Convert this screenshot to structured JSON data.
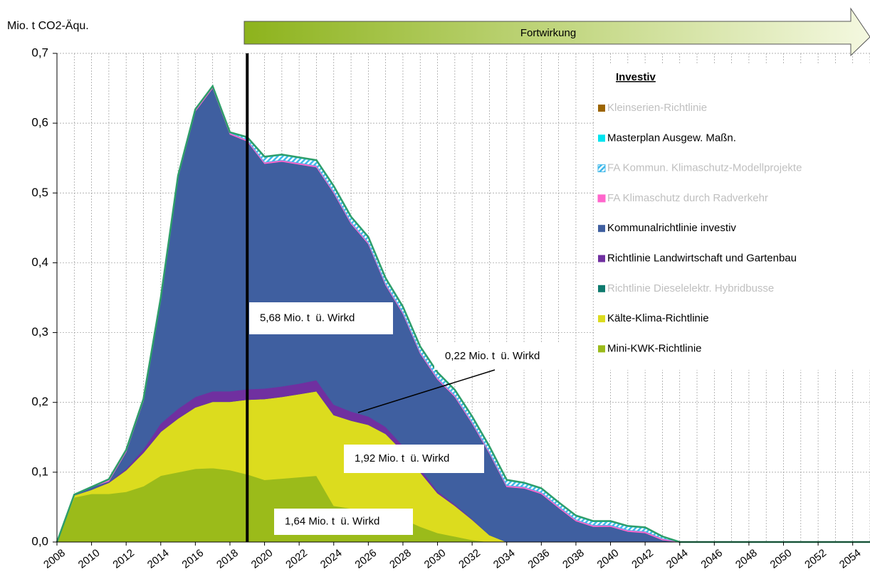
{
  "chart_data": {
    "type": "stacked_area",
    "y_axis_label": "Mio. t CO2-Äqu.",
    "banner": "Fortwirkung",
    "legend_title": "Investiv",
    "marker_x": 2019,
    "x": [
      2008,
      2009,
      2010,
      2011,
      2012,
      2013,
      2014,
      2015,
      2016,
      2017,
      2018,
      2019,
      2020,
      2021,
      2022,
      2023,
      2024,
      2025,
      2026,
      2027,
      2028,
      2029,
      2030,
      2031,
      2032,
      2033,
      2034,
      2035,
      2036,
      2037,
      2038,
      2039,
      2040,
      2041,
      2042,
      2043,
      2044,
      2045,
      2046,
      2047,
      2048,
      2049,
      2050,
      2051,
      2052,
      2053,
      2054,
      2055
    ],
    "xlim": [
      2008,
      2055
    ],
    "xticks": [
      2008,
      2010,
      2012,
      2014,
      2016,
      2018,
      2020,
      2022,
      2024,
      2026,
      2028,
      2030,
      2032,
      2034,
      2036,
      2038,
      2040,
      2042,
      2044,
      2046,
      2048,
      2050,
      2052,
      2054
    ],
    "ylim": [
      0,
      0.7
    ],
    "yticks": [
      {
        "value": 0,
        "label": "0,0"
      },
      {
        "value": 0.1,
        "label": "0,1"
      },
      {
        "value": 0.2,
        "label": "0,2"
      },
      {
        "value": 0.3,
        "label": "0,3"
      },
      {
        "value": 0.4,
        "label": "0,4"
      },
      {
        "value": 0.5,
        "label": "0,5"
      },
      {
        "value": 0.6,
        "label": "0,6"
      },
      {
        "value": 0.7,
        "label": "0,7"
      }
    ],
    "grid": true,
    "outline_color": "#2e9e6a",
    "series": [
      {
        "name": "Mini-KWK-Richtlinie",
        "color": "#9bbb1a",
        "muted": false,
        "values": [
          0,
          0.064,
          0.069,
          0.069,
          0.072,
          0.08,
          0.095,
          0.1,
          0.105,
          0.106,
          0.103,
          0.097,
          0.089,
          0.091,
          0.093,
          0.095,
          0.052,
          0.048,
          0.045,
          0.04,
          0.033,
          0.022,
          0.013,
          0.008,
          0.003,
          0,
          0,
          0,
          0,
          0,
          0,
          0,
          0,
          0,
          0,
          0,
          0,
          0,
          0,
          0,
          0,
          0,
          0,
          0,
          0,
          0,
          0,
          0
        ]
      },
      {
        "name": "Kälte-Klima-Richtlinie",
        "color": "#dcdc1e",
        "muted": false,
        "values": [
          0,
          0.003,
          0.006,
          0.016,
          0.031,
          0.048,
          0.063,
          0.077,
          0.088,
          0.095,
          0.098,
          0.107,
          0.116,
          0.117,
          0.119,
          0.121,
          0.13,
          0.126,
          0.123,
          0.115,
          0.097,
          0.078,
          0.057,
          0.044,
          0.029,
          0.01,
          0,
          0,
          0,
          0,
          0,
          0,
          0,
          0,
          0,
          0,
          0,
          0,
          0,
          0,
          0,
          0,
          0,
          0,
          0,
          0,
          0,
          0
        ]
      },
      {
        "name": "Richtlinie Dieselelektr. Hybridbusse",
        "color": "#0e7a6e",
        "muted": true,
        "values": [
          0,
          0,
          0,
          0,
          0,
          0,
          0,
          0,
          0,
          0,
          0,
          0,
          0,
          0,
          0,
          0,
          0,
          0,
          0,
          0,
          0,
          0,
          0,
          0,
          0,
          0,
          0,
          0,
          0,
          0,
          0,
          0,
          0,
          0,
          0,
          0,
          0,
          0,
          0,
          0,
          0,
          0,
          0,
          0,
          0,
          0,
          0,
          0
        ]
      },
      {
        "name": "Richtlinie Landwirtschaft und Gartenbau",
        "color": "#7030a0",
        "muted": false,
        "values": [
          0,
          0,
          0,
          0.001,
          0.002,
          0.005,
          0.012,
          0.014,
          0.015,
          0.015,
          0.015,
          0.015,
          0.015,
          0.015,
          0.015,
          0.016,
          0.015,
          0.013,
          0.012,
          0.01,
          0.008,
          0.005,
          0.003,
          0.002,
          0.001,
          0,
          0,
          0,
          0,
          0,
          0,
          0,
          0,
          0,
          0,
          0,
          0,
          0,
          0,
          0,
          0,
          0,
          0,
          0,
          0,
          0,
          0,
          0
        ]
      },
      {
        "name": "Kommunalrichtlinie investiv",
        "color": "#3f5fa0",
        "muted": false,
        "values": [
          0,
          0.001,
          0.004,
          0.001,
          0.024,
          0.069,
          0.177,
          0.331,
          0.409,
          0.434,
          0.368,
          0.355,
          0.322,
          0.322,
          0.314,
          0.305,
          0.303,
          0.269,
          0.247,
          0.203,
          0.189,
          0.165,
          0.16,
          0.154,
          0.137,
          0.117,
          0.079,
          0.077,
          0.069,
          0.049,
          0.03,
          0.022,
          0.022,
          0.015,
          0.013,
          0.003,
          0,
          0,
          0,
          0,
          0,
          0,
          0,
          0,
          0,
          0,
          0,
          0
        ]
      },
      {
        "name": "FA Klimaschutz durch Radverkehr",
        "color": "#ff66cc",
        "muted": true,
        "values": [
          0,
          0,
          0,
          0.002,
          0.002,
          0.002,
          0.002,
          0.002,
          0.002,
          0.002,
          0.002,
          0.002,
          0.002,
          0.002,
          0.002,
          0.002,
          0.002,
          0.002,
          0.002,
          0.002,
          0.002,
          0.002,
          0.002,
          0.002,
          0.002,
          0.002,
          0.002,
          0.002,
          0.002,
          0.002,
          0.002,
          0.002,
          0.002,
          0.002,
          0.002,
          0.002,
          0,
          0,
          0,
          0,
          0,
          0,
          0,
          0,
          0,
          0,
          0,
          0
        ]
      },
      {
        "name": "FA Kommun. Klimaschutz-Modellprojekte",
        "color": "#3fb8ea",
        "muted": true,
        "hatched": true,
        "values": [
          0,
          0,
          0,
          0,
          0,
          0,
          0,
          0,
          0,
          0,
          0,
          0.003,
          0.007,
          0.007,
          0.007,
          0.007,
          0.007,
          0.007,
          0.007,
          0.007,
          0.007,
          0.007,
          0.007,
          0.007,
          0.007,
          0.007,
          0.007,
          0.005,
          0.005,
          0.005,
          0.005,
          0.005,
          0.005,
          0.005,
          0.005,
          0.002,
          0,
          0,
          0,
          0,
          0,
          0,
          0,
          0,
          0,
          0,
          0,
          0
        ]
      },
      {
        "name": "Masterplan Ausgew. Maßn.",
        "color": "#00e5f0",
        "muted": false,
        "values": [
          0,
          0,
          0,
          0.001,
          0.001,
          0.001,
          0.001,
          0.001,
          0.001,
          0.001,
          0.001,
          0.001,
          0.001,
          0.001,
          0.001,
          0.001,
          0.001,
          0.001,
          0.001,
          0.001,
          0.001,
          0.001,
          0.001,
          0.001,
          0.001,
          0.001,
          0.001,
          0.001,
          0.001,
          0.001,
          0.001,
          0.001,
          0.001,
          0.001,
          0.001,
          0.001,
          0,
          0,
          0,
          0,
          0,
          0,
          0,
          0,
          0,
          0,
          0,
          0
        ]
      },
      {
        "name": "Kleinserien-Richtlinie",
        "color": "#9c6500",
        "muted": true,
        "values": [
          0,
          0,
          0,
          0,
          0,
          0,
          0,
          0,
          0,
          0,
          0,
          0,
          0,
          0,
          0,
          0,
          0,
          0,
          0,
          0,
          0,
          0,
          0,
          0,
          0,
          0,
          0,
          0,
          0,
          0,
          0,
          0,
          0,
          0,
          0,
          0,
          0,
          0,
          0,
          0,
          0,
          0,
          0,
          0,
          0,
          0,
          0,
          0
        ]
      }
    ],
    "annotations": [
      "5,68 Mio. t  ü. Wirkd",
      "0,22 Mio. t  ü. Wirkd",
      "1,92 Mio. t  ü. Wirkd",
      "1,64 Mio. t  ü. Wirkd"
    ]
  }
}
